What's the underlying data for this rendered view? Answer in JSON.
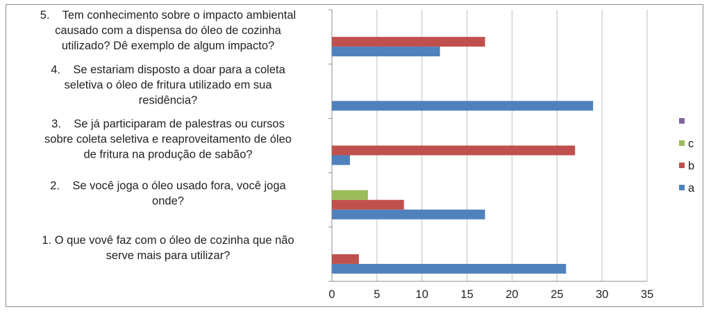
{
  "chart_data": {
    "type": "bar",
    "orientation": "horizontal",
    "categories": [
      [
        "1. O que vovê faz com o óleo de cozinha que não",
        "serve mais para utilizar?"
      ],
      [
        "2.    Se você joga o óleo usado fora, você joga",
        "onde?"
      ],
      [
        "3.    Se já participaram de palestras ou cursos",
        "sobre coleta seletiva e reaproveitamento de óleo",
        "de fritura na produção de sabão?"
      ],
      [
        "4.    Se estariam disposto a doar para a coleta",
        "seletiva o óleo de fritura utilizado em sua",
        "residência?"
      ],
      [
        "5.    Tem conhecimento sobre o impacto ambiental",
        "causado com a dispensa do óleo de cozinha",
        "utilizado? Dê exemplo de algum impacto?"
      ]
    ],
    "series": [
      {
        "name": "a",
        "color": "#4f81bd",
        "values": [
          26,
          17,
          2,
          29,
          12
        ]
      },
      {
        "name": "b",
        "color": "#c0504d",
        "values": [
          3,
          8,
          27,
          0,
          17
        ]
      },
      {
        "name": "c",
        "color": "#9bbb59",
        "values": [
          0,
          4,
          0,
          0,
          0
        ]
      },
      {
        "name": "",
        "color": "#8064a2",
        "values": [
          0,
          0,
          0,
          0,
          0
        ]
      }
    ],
    "xlim": [
      0,
      35
    ],
    "xticks": [
      "0",
      "5",
      "10",
      "15",
      "20",
      "25",
      "30",
      "35"
    ],
    "grid": true,
    "legend_position": "right"
  }
}
